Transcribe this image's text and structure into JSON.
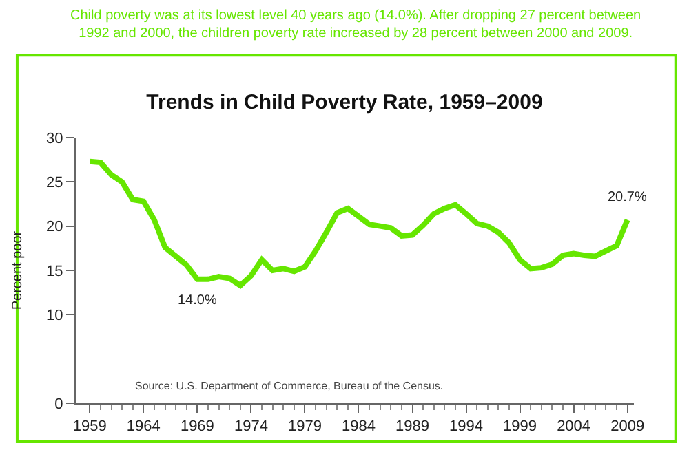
{
  "chart_data": {
    "type": "line",
    "subtitle": "Child poverty was at its lowest level 40 years ago (14.0%). After dropping 27 percent between 1992 and 2000, the children poverty rate increased by 28 percent between 2000 and 2009.",
    "title": "Trends in Child Poverty Rate, 1959–2009",
    "ylabel": "Percent poor",
    "x": [
      1959,
      1960,
      1961,
      1962,
      1963,
      1964,
      1965,
      1966,
      1967,
      1968,
      1969,
      1970,
      1971,
      1972,
      1973,
      1974,
      1975,
      1976,
      1977,
      1978,
      1979,
      1980,
      1981,
      1982,
      1983,
      1984,
      1985,
      1986,
      1987,
      1988,
      1989,
      1990,
      1991,
      1992,
      1993,
      1994,
      1995,
      1996,
      1997,
      1998,
      1999,
      2000,
      2001,
      2002,
      2003,
      2004,
      2005,
      2006,
      2007,
      2008,
      2009
    ],
    "series": [
      {
        "color": "#66e600",
        "values": [
          27.3,
          27.2,
          25.8,
          25.0,
          23.0,
          22.8,
          20.7,
          17.6,
          16.6,
          15.6,
          14.0,
          14.0,
          14.3,
          14.1,
          13.3,
          14.4,
          16.2,
          15.0,
          15.2,
          14.9,
          15.4,
          17.2,
          19.3,
          21.5,
          22.0,
          21.1,
          20.2,
          20.0,
          19.8,
          18.9,
          19.0,
          20.1,
          21.4,
          22.0,
          22.4,
          21.4,
          20.3,
          20.0,
          19.3,
          18.1,
          16.2,
          15.2,
          15.3,
          15.7,
          16.7,
          16.9,
          16.7,
          16.6,
          17.2,
          17.8,
          20.7
        ]
      }
    ],
    "xlim": [
      1957.7,
      2009.6
    ],
    "xticks": [
      1959,
      1964,
      1969,
      1974,
      1979,
      1984,
      1989,
      1994,
      1999,
      2004,
      2009
    ],
    "ylim": [
      0,
      30
    ],
    "yticks": [
      0,
      10,
      15,
      20,
      25,
      30
    ],
    "marker": "none",
    "line_style": "solid",
    "annotations": [
      {
        "text": "14.0%",
        "x": 1969,
        "y": 14.0
      },
      {
        "text": "20.7%",
        "x": 2009,
        "y": 20.7
      },
      "Source: U.S. Department of Commerce, Bureau of the Census."
    ]
  }
}
